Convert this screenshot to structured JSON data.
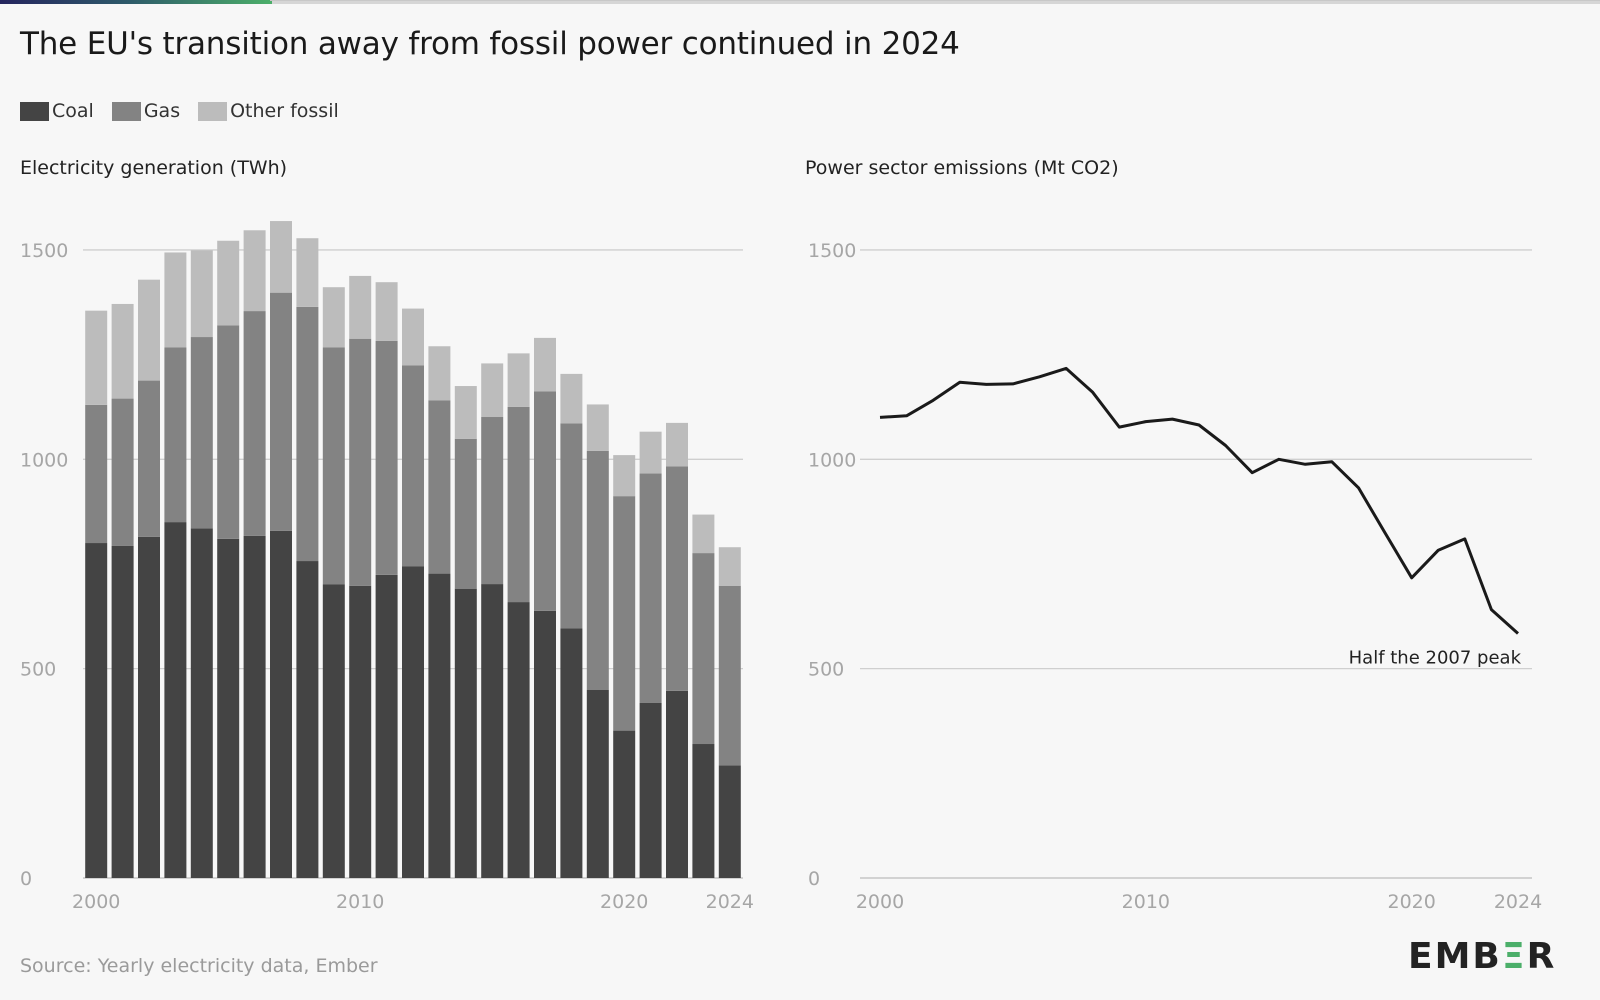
{
  "title": "The EU's transition away from fossil power continued in 2024",
  "legend": [
    {
      "label": "Coal",
      "color": "#444444"
    },
    {
      "label": "Gas",
      "color": "#838383"
    },
    {
      "label": "Other fossil",
      "color": "#bcbcbc"
    }
  ],
  "source": "Source: Yearly electricity data, Ember",
  "logo": "EMBER",
  "colors": {
    "coal": "#444444",
    "gas": "#838383",
    "other": "#bcbcbc",
    "line": "#1a1a1a",
    "grid": "#cfcfcf",
    "logo_accent": "#4caf6a"
  },
  "chart_data": [
    {
      "type": "bar",
      "stacked": true,
      "title": "Electricity generation (TWh)",
      "xlabel": "",
      "ylabel": "",
      "categories": [
        "2000",
        "2001",
        "2002",
        "2003",
        "2004",
        "2005",
        "2006",
        "2007",
        "2008",
        "2009",
        "2010",
        "2011",
        "2012",
        "2013",
        "2014",
        "2015",
        "2016",
        "2017",
        "2018",
        "2019",
        "2020",
        "2021",
        "2022",
        "2023",
        "2024"
      ],
      "xtick_labels": [
        "2000",
        "2010",
        "2020",
        "2024"
      ],
      "ylim": [
        0,
        1500
      ],
      "yticks": [
        0,
        500,
        1000,
        1500
      ],
      "grid": true,
      "series": [
        {
          "name": "Coal",
          "values": [
            800,
            793,
            815,
            850,
            835,
            810,
            817,
            829,
            757,
            701,
            698,
            724,
            744,
            727,
            691,
            702,
            659,
            638,
            596,
            449,
            352,
            418,
            447,
            320,
            269
          ]
        },
        {
          "name": "Gas",
          "values": [
            330,
            352,
            373,
            417,
            457,
            510,
            537,
            569,
            607,
            566,
            590,
            559,
            480,
            414,
            358,
            399,
            466,
            524,
            490,
            571,
            560,
            548,
            536,
            456,
            429
          ]
        },
        {
          "name": "Other fossil",
          "values": [
            225,
            226,
            241,
            227,
            207,
            202,
            193,
            171,
            164,
            144,
            150,
            140,
            136,
            129,
            126,
            128,
            128,
            128,
            118,
            111,
            98,
            100,
            104,
            92,
            92
          ]
        }
      ]
    },
    {
      "type": "line",
      "title": "Power sector emissions (Mt CO2)",
      "xlabel": "",
      "ylabel": "",
      "x": [
        2000,
        2001,
        2002,
        2003,
        2004,
        2005,
        2006,
        2007,
        2008,
        2009,
        2010,
        2011,
        2012,
        2013,
        2014,
        2015,
        2016,
        2017,
        2018,
        2019,
        2020,
        2021,
        2022,
        2023,
        2024
      ],
      "xtick_labels": [
        "2000",
        "2010",
        "2020",
        "2024"
      ],
      "ylim": [
        0,
        1500
      ],
      "yticks": [
        0,
        500,
        1000,
        1500
      ],
      "grid": true,
      "series": [
        {
          "values": [
            1100,
            1104,
            1141,
            1184,
            1179,
            1180,
            1197,
            1217,
            1160,
            1077,
            1090,
            1096,
            1082,
            1033,
            968,
            1000,
            988,
            994,
            932,
            824,
            717,
            783,
            810,
            641,
            584
          ]
        }
      ],
      "annotations": [
        {
          "text": "Half the 2007 peak",
          "x": 2024,
          "y": 584
        }
      ]
    }
  ]
}
